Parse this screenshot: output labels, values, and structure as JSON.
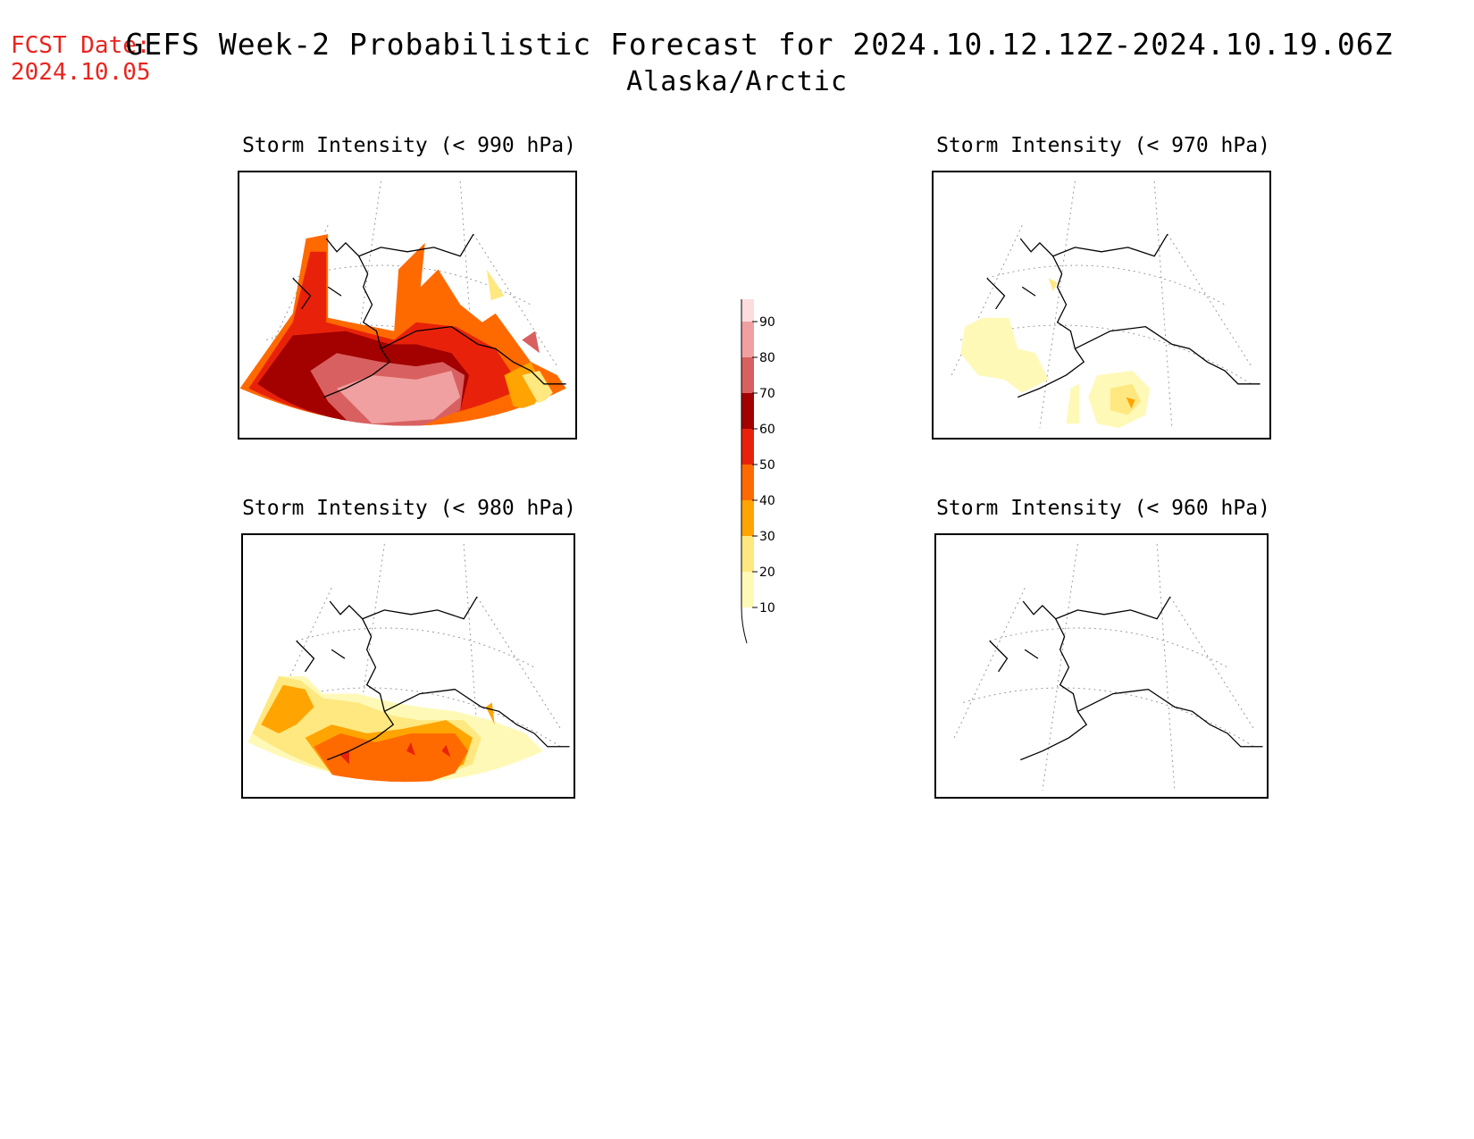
{
  "header": {
    "fcst_label": "FCST Date:",
    "fcst_date": "2024.10.05",
    "title": "GEFS Week-2 Probabilistic Forecast for 2024.10.12.12Z-2024.10.19.06Z",
    "subtitle": "Alaska/Arctic"
  },
  "panels": [
    {
      "title": "Storm Intensity (< 990 hPa)",
      "threshold_hpa": 990
    },
    {
      "title": "Storm Intensity (< 970 hPa)",
      "threshold_hpa": 970
    },
    {
      "title": "Storm Intensity (< 980 hPa)",
      "threshold_hpa": 980
    },
    {
      "title": "Storm Intensity (< 960 hPa)",
      "threshold_hpa": 960
    }
  ],
  "colorbar": {
    "levels": [
      "10",
      "20",
      "30",
      "40",
      "50",
      "60",
      "70",
      "80",
      "90"
    ],
    "colors": [
      "#fff9b8",
      "#ffe880",
      "#ffa400",
      "#ff6a00",
      "#e8220a",
      "#a30000",
      "#d96060",
      "#f0a0a0",
      "#fcdcdc"
    ]
  }
}
